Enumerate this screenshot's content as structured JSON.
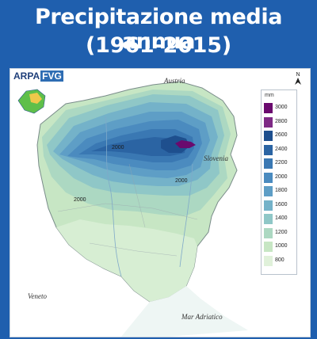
{
  "title": {
    "line1": "Precipitazione media annua",
    "line2": "(1961-2015)"
  },
  "logo": {
    "part1": "ARPA",
    "part2": "FVG"
  },
  "legend": {
    "unit": "mm",
    "items": [
      {
        "label": "3000",
        "color": "#6a0a6e"
      },
      {
        "label": "2800",
        "color": "#7e2a85"
      },
      {
        "label": "2600",
        "color": "#1e4f8e"
      },
      {
        "label": "2400",
        "color": "#2b64a3"
      },
      {
        "label": "2200",
        "color": "#3a78b3"
      },
      {
        "label": "2000",
        "color": "#4b8bbf"
      },
      {
        "label": "1800",
        "color": "#5e9ec6"
      },
      {
        "label": "1600",
        "color": "#74b2c9"
      },
      {
        "label": "1400",
        "color": "#8fc7c7"
      },
      {
        "label": "1200",
        "color": "#acd8c2"
      },
      {
        "label": "1000",
        "color": "#c7e6c4"
      },
      {
        "label": "800",
        "color": "#e0f1da"
      }
    ]
  },
  "places": {
    "austria": "Austria",
    "slovenia": "Slovenia",
    "veneto": "Veneto",
    "adriatic": "Mar Adriatico"
  },
  "contours": {
    "label_a": "2000",
    "label_b": "2000",
    "label_c": "2000"
  },
  "north_arrow": "N",
  "colors": {
    "background": "#1f5fae",
    "land_outside": "#ffffff",
    "purple_peak": "#6a0a6e"
  }
}
